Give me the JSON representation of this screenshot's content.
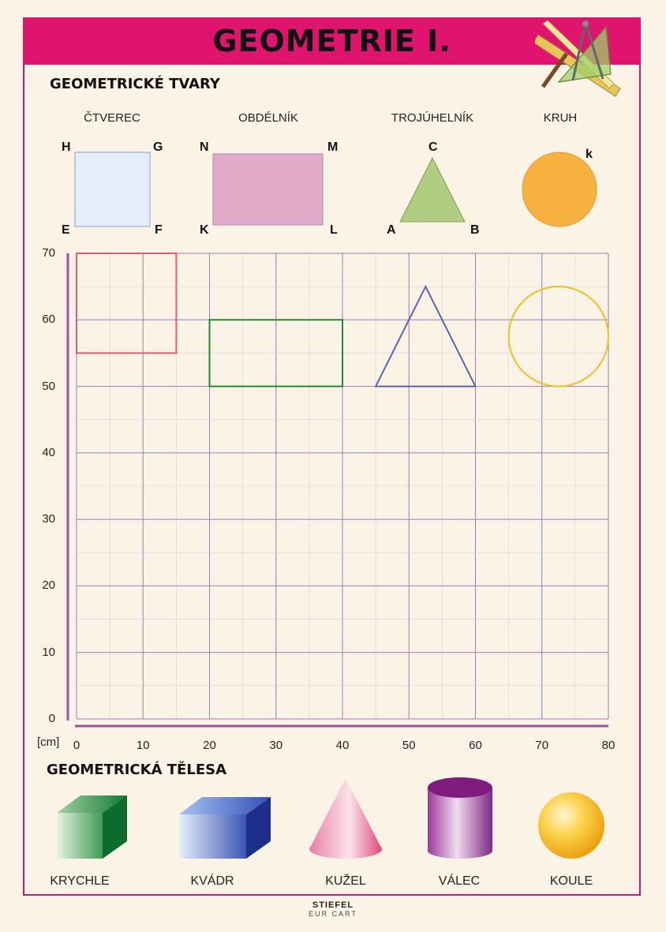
{
  "title": "GEOMETRIE I.",
  "shapes_section": {
    "title": "GEOMETRICKÉ TVARY",
    "shapes": [
      {
        "name": "ČTVEREC",
        "vertices": [
          "H",
          "G",
          "E",
          "F"
        ],
        "fill": "#e4eef8",
        "stroke": "#8a9cc8"
      },
      {
        "name": "OBDÉLNÍK",
        "vertices": [
          "N",
          "M",
          "K",
          "L"
        ],
        "fill": "#e1aac9",
        "stroke": "#b787a8"
      },
      {
        "name": "TROJÚHELNÍK",
        "vertices": [
          "C",
          "A",
          "B"
        ],
        "fill": "#b1cd82",
        "stroke": "#7fa04e"
      },
      {
        "name": "KRUH",
        "vertices": [
          "k"
        ],
        "fill": "#f6b13e",
        "stroke": "#e59a22"
      }
    ]
  },
  "grid": {
    "unit_label": "[cm]",
    "x_ticks": [
      "0",
      "10",
      "20",
      "30",
      "40",
      "50",
      "60",
      "70",
      "80"
    ],
    "y_ticks": [
      "0",
      "10",
      "20",
      "30",
      "40",
      "50",
      "60",
      "70"
    ],
    "xlim": [
      0,
      80
    ],
    "ylim": [
      0,
      70
    ],
    "drawn_shapes": [
      {
        "type": "rect",
        "x1": 0,
        "y1": 55,
        "x2": 15,
        "y2": 70,
        "color": "#e05a7a"
      },
      {
        "type": "rect",
        "x1": 20,
        "y1": 50,
        "x2": 40,
        "y2": 60,
        "color": "#1e8a3a"
      },
      {
        "type": "triangle",
        "points": [
          [
            45,
            50
          ],
          [
            60,
            50
          ],
          [
            52.5,
            65
          ]
        ],
        "color": "#5866aa"
      },
      {
        "type": "circle",
        "cx": 72.5,
        "cy": 57.5,
        "r": 7.5,
        "color": "#f2c01e"
      }
    ]
  },
  "solids_section": {
    "title": "GEOMETRICKÁ TĚLESA",
    "solids": [
      "KRYCHLE",
      "KVÁDR",
      "KUŽEL",
      "VÁLEC",
      "KOULE"
    ]
  },
  "footer": {
    "logo": "STIEFEL",
    "logo_sub": "EUR   CART"
  },
  "colors": {
    "banner": "#e0146f",
    "background": "#fbf3e6",
    "grid_line": "#a07bb4",
    "axis": "#9c4fa4"
  }
}
